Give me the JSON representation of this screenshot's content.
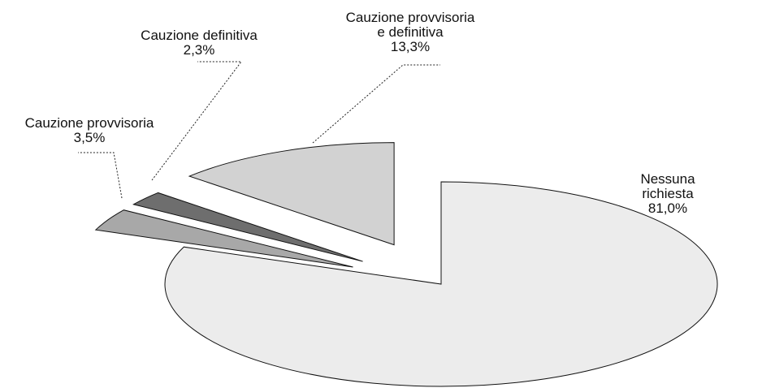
{
  "chart_data": {
    "type": "pie",
    "categories": [
      "Nessuna richiesta",
      "Cauzione provvisoria",
      "Cauzione definitiva",
      "Cauzione provvisoria\ne definitiva"
    ],
    "values": [
      81.0,
      3.5,
      2.3,
      13.3
    ],
    "value_labels": [
      "81,0%",
      "3,5%",
      "2,3%",
      "13,3%"
    ],
    "colors": [
      "#ececec",
      "#a8a8a8",
      "#6e6e6e",
      "#d2d2d2"
    ]
  }
}
